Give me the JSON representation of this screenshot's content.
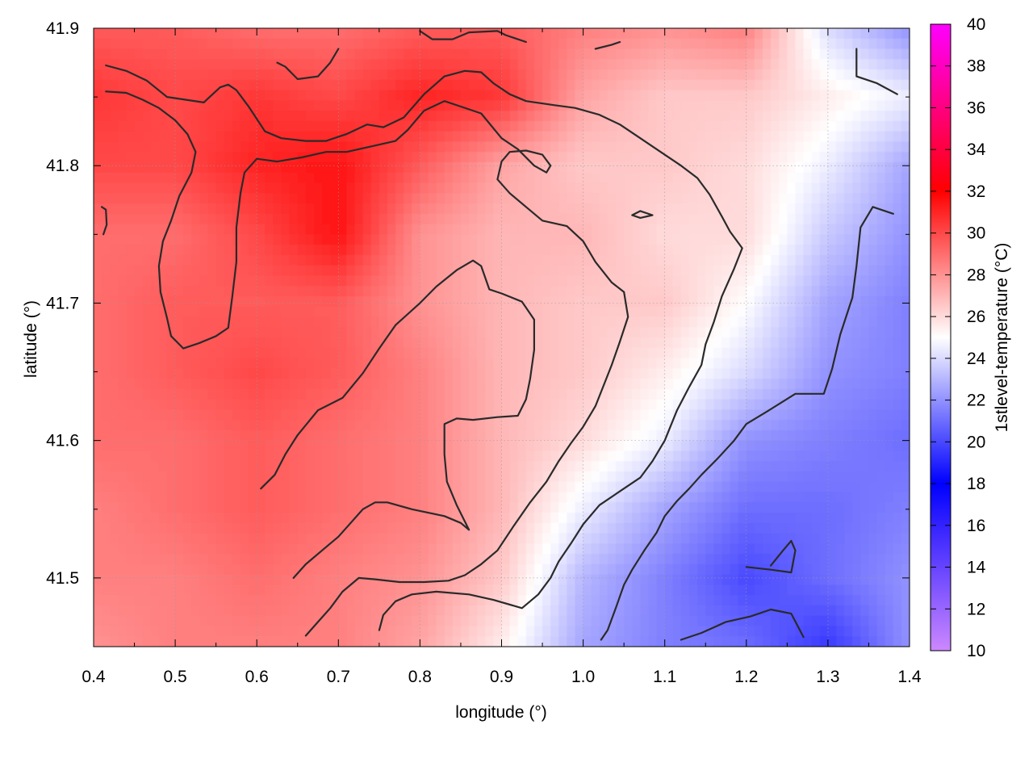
{
  "chart_data": {
    "type": "heatmap",
    "title": "",
    "xlabel": "longitude (°)",
    "ylabel": "latitude (°)",
    "colorbar_label": "1stlevel-temperature (°C)",
    "xlim": [
      0.4,
      1.4
    ],
    "ylim": [
      41.45,
      41.9
    ],
    "zlim": [
      10,
      40
    ],
    "x_ticks": [
      "0.4",
      "0.5",
      "0.6",
      "0.7",
      "0.8",
      "0.9",
      "1.0",
      "1.1",
      "1.2",
      "1.3",
      "1.4"
    ],
    "y_ticks": [
      "41.5",
      "41.6",
      "41.7",
      "41.8",
      "41.9"
    ],
    "colorbar_ticks": [
      "10",
      "12",
      "14",
      "16",
      "18",
      "20",
      "22",
      "24",
      "26",
      "28",
      "30",
      "32",
      "34",
      "36",
      "38",
      "40"
    ],
    "colormap": [
      {
        "value": 10,
        "color": "#cc88ff"
      },
      {
        "value": 18,
        "color": "#0000ff"
      },
      {
        "value": 25,
        "color": "#ffffff"
      },
      {
        "value": 32,
        "color": "#ff0000"
      },
      {
        "value": 40,
        "color": "#ff00ff"
      }
    ],
    "grid": true,
    "temperature_field": {
      "x": [
        0.4,
        0.5,
        0.6,
        0.7,
        0.8,
        0.9,
        1.0,
        1.1,
        1.2,
        1.3,
        1.4
      ],
      "y": [
        41.9,
        41.85,
        41.8,
        41.75,
        41.7,
        41.65,
        41.6,
        41.55,
        41.5,
        41.45
      ],
      "values": [
        [
          29.5,
          29.5,
          29.0,
          29.0,
          29.5,
          29.5,
          28.5,
          28.0,
          28.5,
          24.0,
          22.0
        ],
        [
          30.5,
          30.0,
          30.5,
          30.0,
          31.0,
          30.5,
          27.5,
          26.5,
          26.5,
          25.5,
          24.5
        ],
        [
          30.0,
          30.0,
          31.0,
          31.5,
          29.5,
          27.5,
          26.5,
          26.5,
          26.0,
          24.5,
          22.5
        ],
        [
          29.0,
          29.0,
          30.0,
          31.5,
          28.0,
          27.0,
          27.0,
          26.0,
          26.0,
          23.5,
          22.0
        ],
        [
          29.0,
          29.5,
          29.5,
          29.5,
          28.0,
          27.0,
          26.5,
          26.5,
          25.0,
          22.5,
          21.5
        ],
        [
          29.0,
          29.5,
          30.0,
          29.5,
          28.5,
          27.0,
          26.5,
          25.5,
          24.0,
          22.0,
          21.5
        ],
        [
          29.0,
          29.0,
          29.5,
          29.0,
          28.5,
          27.0,
          26.0,
          24.5,
          22.0,
          21.5,
          21.0
        ],
        [
          28.5,
          29.0,
          29.5,
          29.0,
          28.5,
          27.0,
          24.5,
          22.5,
          21.0,
          21.0,
          21.5
        ],
        [
          28.5,
          28.5,
          29.0,
          28.5,
          28.0,
          26.5,
          23.0,
          21.5,
          20.0,
          21.0,
          22.0
        ],
        [
          28.0,
          28.5,
          28.5,
          28.5,
          27.5,
          25.5,
          22.5,
          21.5,
          21.0,
          19.5,
          22.0
        ]
      ]
    },
    "contours": [
      {
        "name": "contour-north-ridge",
        "points": [
          [
            0.415,
            41.873
          ],
          [
            0.44,
            41.869
          ],
          [
            0.465,
            41.862
          ],
          [
            0.49,
            41.85
          ],
          [
            0.535,
            41.846
          ],
          [
            0.555,
            41.857
          ],
          [
            0.565,
            41.859
          ],
          [
            0.575,
            41.855
          ],
          [
            0.59,
            41.843
          ],
          [
            0.61,
            41.825
          ],
          [
            0.63,
            41.82
          ],
          [
            0.66,
            41.818
          ],
          [
            0.685,
            41.818
          ],
          [
            0.71,
            41.823
          ],
          [
            0.735,
            41.83
          ],
          [
            0.755,
            41.828
          ],
          [
            0.78,
            41.835
          ],
          [
            0.805,
            41.852
          ],
          [
            0.83,
            41.865
          ],
          [
            0.855,
            41.869
          ],
          [
            0.875,
            41.868
          ],
          [
            0.89,
            41.86
          ],
          [
            0.91,
            41.852
          ],
          [
            0.93,
            41.847
          ],
          [
            0.965,
            41.844
          ],
          [
            0.99,
            41.842
          ],
          [
            1.02,
            41.837
          ],
          [
            1.045,
            41.83
          ],
          [
            1.07,
            41.82
          ],
          [
            1.095,
            41.81
          ],
          [
            1.12,
            41.8
          ],
          [
            1.14,
            41.791
          ],
          [
            1.155,
            41.779
          ],
          [
            1.17,
            41.763
          ],
          [
            1.18,
            41.752
          ],
          [
            1.195,
            41.74
          ],
          [
            1.185,
            41.725
          ],
          [
            1.17,
            41.705
          ],
          [
            1.16,
            41.686
          ],
          [
            1.15,
            41.67
          ],
          [
            1.145,
            41.655
          ],
          [
            1.13,
            41.639
          ],
          [
            1.115,
            41.622
          ],
          [
            1.1,
            41.6
          ],
          [
            1.085,
            41.585
          ],
          [
            1.07,
            41.573
          ],
          [
            1.045,
            41.563
          ],
          [
            1.02,
            41.553
          ],
          [
            1.0,
            41.539
          ],
          [
            0.985,
            41.525
          ],
          [
            0.97,
            41.512
          ],
          [
            0.96,
            41.5
          ],
          [
            0.945,
            41.488
          ],
          [
            0.925,
            41.478
          ],
          [
            0.89,
            41.484
          ],
          [
            0.86,
            41.488
          ],
          [
            0.82,
            41.49
          ],
          [
            0.79,
            41.488
          ],
          [
            0.77,
            41.483
          ],
          [
            0.755,
            41.473
          ],
          [
            0.75,
            41.462
          ]
        ]
      },
      {
        "name": "contour-west-lobe",
        "points": [
          [
            0.415,
            41.854
          ],
          [
            0.44,
            41.853
          ],
          [
            0.46,
            41.848
          ],
          [
            0.48,
            41.842
          ],
          [
            0.5,
            41.833
          ],
          [
            0.515,
            41.823
          ],
          [
            0.525,
            41.81
          ],
          [
            0.52,
            41.795
          ],
          [
            0.505,
            41.778
          ],
          [
            0.495,
            41.76
          ],
          [
            0.485,
            41.745
          ],
          [
            0.48,
            41.727
          ],
          [
            0.482,
            41.708
          ],
          [
            0.49,
            41.689
          ],
          [
            0.495,
            41.676
          ],
          [
            0.51,
            41.667
          ],
          [
            0.53,
            41.671
          ],
          [
            0.55,
            41.676
          ],
          [
            0.565,
            41.682
          ],
          [
            0.57,
            41.705
          ],
          [
            0.575,
            41.73
          ],
          [
            0.575,
            41.755
          ],
          [
            0.58,
            41.78
          ],
          [
            0.585,
            41.795
          ],
          [
            0.6,
            41.805
          ],
          [
            0.625,
            41.803
          ],
          [
            0.655,
            41.806
          ],
          [
            0.685,
            41.81
          ],
          [
            0.71,
            41.81
          ],
          [
            0.74,
            41.814
          ],
          [
            0.77,
            41.818
          ],
          [
            0.785,
            41.826
          ],
          [
            0.805,
            41.84
          ],
          [
            0.83,
            41.847
          ],
          [
            0.85,
            41.843
          ],
          [
            0.875,
            41.838
          ],
          [
            0.9,
            41.82
          ],
          [
            0.92,
            41.812
          ],
          [
            0.94,
            41.8
          ],
          [
            0.955,
            41.795
          ],
          [
            0.96,
            41.8
          ],
          [
            0.95,
            41.808
          ],
          [
            0.93,
            41.811
          ],
          [
            0.91,
            41.81
          ],
          [
            0.9,
            41.803
          ],
          [
            0.895,
            41.79
          ],
          [
            0.91,
            41.78
          ],
          [
            0.93,
            41.77
          ],
          [
            0.95,
            41.76
          ],
          [
            0.98,
            41.756
          ],
          [
            1.0,
            41.745
          ],
          [
            1.015,
            41.73
          ],
          [
            1.035,
            41.715
          ],
          [
            1.05,
            41.708
          ],
          [
            1.055,
            41.69
          ],
          [
            1.045,
            41.672
          ],
          [
            1.035,
            41.655
          ],
          [
            1.025,
            41.64
          ],
          [
            1.015,
            41.625
          ],
          [
            1.0,
            41.61
          ],
          [
            0.985,
            41.598
          ],
          [
            0.97,
            41.585
          ],
          [
            0.955,
            41.57
          ],
          [
            0.935,
            41.555
          ],
          [
            0.915,
            41.538
          ],
          [
            0.895,
            41.52
          ],
          [
            0.875,
            41.51
          ],
          [
            0.855,
            41.502
          ],
          [
            0.835,
            41.498
          ],
          [
            0.805,
            41.497
          ],
          [
            0.775,
            41.497
          ],
          [
            0.745,
            41.499
          ],
          [
            0.725,
            41.5
          ],
          [
            0.705,
            41.49
          ],
          [
            0.69,
            41.478
          ],
          [
            0.675,
            41.468
          ],
          [
            0.66,
            41.458
          ]
        ]
      },
      {
        "name": "contour-inner-ring",
        "points": [
          [
            0.605,
            41.565
          ],
          [
            0.622,
            41.575
          ],
          [
            0.635,
            41.59
          ],
          [
            0.65,
            41.604
          ],
          [
            0.675,
            41.622
          ],
          [
            0.705,
            41.631
          ],
          [
            0.73,
            41.649
          ],
          [
            0.75,
            41.667
          ],
          [
            0.77,
            41.684
          ],
          [
            0.8,
            41.7
          ],
          [
            0.82,
            41.712
          ],
          [
            0.845,
            41.724
          ],
          [
            0.865,
            41.731
          ],
          [
            0.875,
            41.727
          ],
          [
            0.885,
            41.71
          ],
          [
            0.9,
            41.707
          ],
          [
            0.925,
            41.701
          ],
          [
            0.94,
            41.688
          ],
          [
            0.94,
            41.666
          ],
          [
            0.935,
            41.645
          ],
          [
            0.93,
            41.63
          ],
          [
            0.92,
            41.618
          ],
          [
            0.895,
            41.617
          ],
          [
            0.865,
            41.615
          ],
          [
            0.845,
            41.616
          ],
          [
            0.83,
            41.612
          ],
          [
            0.83,
            41.59
          ],
          [
            0.833,
            41.57
          ],
          [
            0.845,
            41.553
          ],
          [
            0.86,
            41.535
          ],
          [
            0.85,
            41.54
          ],
          [
            0.83,
            41.545
          ],
          [
            0.79,
            41.55
          ],
          [
            0.76,
            41.555
          ],
          [
            0.745,
            41.555
          ],
          [
            0.73,
            41.55
          ],
          [
            0.715,
            41.54
          ],
          [
            0.7,
            41.53
          ],
          [
            0.68,
            41.52
          ],
          [
            0.66,
            41.51
          ],
          [
            0.645,
            41.5
          ]
        ]
      },
      {
        "name": "contour-small-loop",
        "points": [
          [
            1.06,
            41.764
          ],
          [
            1.07,
            41.767
          ],
          [
            1.085,
            41.764
          ],
          [
            1.07,
            41.762
          ],
          [
            1.06,
            41.764
          ]
        ]
      },
      {
        "name": "contour-east-1",
        "points": [
          [
            1.022,
            41.455
          ],
          [
            1.03,
            41.462
          ],
          [
            1.04,
            41.478
          ],
          [
            1.05,
            41.495
          ],
          [
            1.06,
            41.506
          ],
          [
            1.075,
            41.52
          ],
          [
            1.09,
            41.533
          ],
          [
            1.1,
            41.545
          ],
          [
            1.115,
            41.556
          ],
          [
            1.13,
            41.565
          ],
          [
            1.145,
            41.575
          ],
          [
            1.165,
            41.587
          ],
          [
            1.185,
            41.6
          ],
          [
            1.2,
            41.612
          ],
          [
            1.225,
            41.621
          ],
          [
            1.26,
            41.634
          ],
          [
            1.295,
            41.634
          ],
          [
            1.305,
            41.652
          ],
          [
            1.315,
            41.677
          ],
          [
            1.33,
            41.704
          ],
          [
            1.335,
            41.727
          ],
          [
            1.34,
            41.755
          ],
          [
            1.355,
            41.77
          ],
          [
            1.38,
            41.765
          ]
        ]
      },
      {
        "name": "contour-east-2",
        "points": [
          [
            1.12,
            41.455
          ],
          [
            1.145,
            41.46
          ],
          [
            1.175,
            41.468
          ],
          [
            1.205,
            41.472
          ],
          [
            1.23,
            41.477
          ],
          [
            1.255,
            41.474
          ],
          [
            1.27,
            41.457
          ]
        ]
      },
      {
        "name": "contour-east-3",
        "points": [
          [
            1.2,
            41.508
          ],
          [
            1.23,
            41.506
          ],
          [
            1.255,
            41.504
          ],
          [
            1.26,
            41.52
          ],
          [
            1.255,
            41.527
          ],
          [
            1.245,
            41.52
          ],
          [
            1.23,
            41.509
          ]
        ]
      },
      {
        "name": "contour-ne-corner",
        "points": [
          [
            1.335,
            41.885
          ],
          [
            1.335,
            41.865
          ],
          [
            1.36,
            41.86
          ],
          [
            1.385,
            41.852
          ]
        ]
      },
      {
        "name": "contour-nw-edge",
        "points": [
          [
            0.41,
            41.77
          ],
          [
            0.415,
            41.768
          ],
          [
            0.416,
            41.757
          ],
          [
            0.412,
            41.75
          ]
        ]
      },
      {
        "name": "contour-north-bump",
        "points": [
          [
            0.625,
            41.875
          ],
          [
            0.635,
            41.872
          ],
          [
            0.65,
            41.863
          ],
          [
            0.675,
            41.865
          ],
          [
            0.69,
            41.875
          ],
          [
            0.7,
            41.885
          ]
        ]
      },
      {
        "name": "contour-north-2",
        "points": [
          [
            0.8,
            41.898
          ],
          [
            0.815,
            41.892
          ],
          [
            0.84,
            41.892
          ],
          [
            0.86,
            41.897
          ],
          [
            0.895,
            41.898
          ],
          [
            0.905,
            41.895
          ],
          [
            0.93,
            41.89
          ]
        ]
      },
      {
        "name": "contour-north-3",
        "points": [
          [
            1.015,
            41.885
          ],
          [
            1.035,
            41.888
          ],
          [
            1.045,
            41.89
          ]
        ]
      }
    ]
  }
}
